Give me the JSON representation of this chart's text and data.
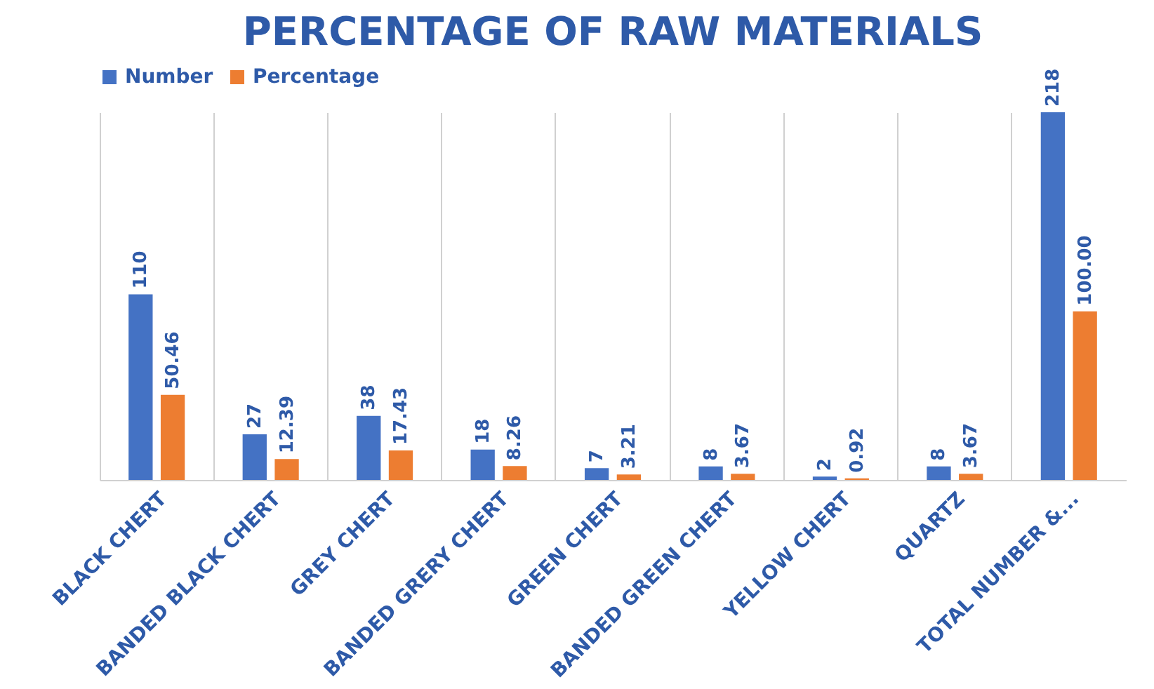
{
  "chart_data": {
    "type": "bar",
    "title": "PERCENTAGE OF RAW MATERIALS",
    "categories": [
      "BLACK CHERT",
      "BANDED BLACK CHERT",
      "GREY CHERT",
      "BANDED GRERY CHERT",
      "GREEN CHERT",
      "BANDED GREEN CHERT",
      "YELLOW CHERT",
      "QUARTZ",
      "TOTAL NUMBER &..."
    ],
    "series": [
      {
        "name": "Number",
        "color": "#4472c4",
        "values": [
          110,
          27,
          38,
          18,
          7,
          8,
          2,
          8,
          218
        ]
      },
      {
        "name": "Percentage",
        "color": "#ed7d31",
        "values": [
          50.46,
          12.39,
          17.43,
          8.26,
          3.21,
          3.67,
          0.92,
          3.67,
          100.0
        ],
        "value_labels": [
          "50.46",
          "12.39",
          "17.43",
          "8.26",
          "3.21",
          "3.67",
          "0.92",
          "3.67",
          "100.00"
        ]
      }
    ],
    "data_labels": true,
    "grid": "x",
    "legend": "top"
  }
}
